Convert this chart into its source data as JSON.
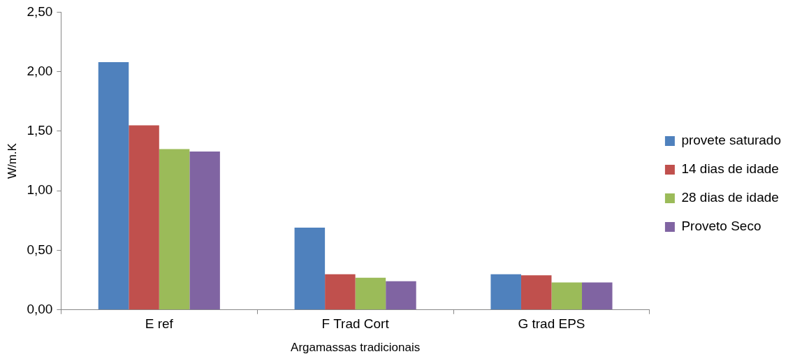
{
  "chart_data": {
    "type": "bar",
    "xlabel": "Argamassas tradicionais",
    "ylabel": "W/m.K",
    "categories": [
      "E ref",
      "F Trad Cort",
      "G trad EPS"
    ],
    "series": [
      {
        "name": "provete saturado",
        "color": "#4f81bd",
        "values": [
          2.08,
          0.69,
          0.3
        ]
      },
      {
        "name": "14 dias de idade",
        "color": "#c0504d",
        "values": [
          1.55,
          0.3,
          0.29
        ]
      },
      {
        "name": "28 dias de idade",
        "color": "#9bbb59",
        "values": [
          1.35,
          0.27,
          0.23
        ]
      },
      {
        "name": "Proveto Seco",
        "color": "#8064a2",
        "values": [
          1.33,
          0.24,
          0.23
        ]
      }
    ],
    "ylim": [
      0,
      2.5
    ],
    "yticks": [
      {
        "value": 0,
        "label": "0,00"
      },
      {
        "value": 0.5,
        "label": "0,50"
      },
      {
        "value": 1,
        "label": "1,00"
      },
      {
        "value": 1.5,
        "label": "1,50"
      },
      {
        "value": 2,
        "label": "2,00"
      },
      {
        "value": 2.5,
        "label": "2,50"
      }
    ],
    "grid": false,
    "legend": "right"
  }
}
